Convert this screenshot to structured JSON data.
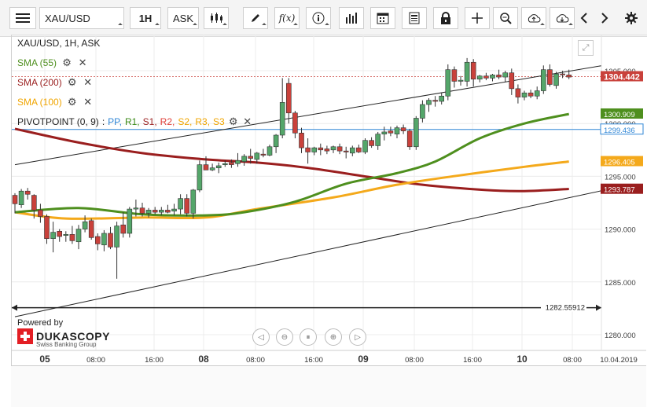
{
  "toolbar": {
    "instrument": "XAU/USD",
    "timeframe": "1H",
    "side": "ASK",
    "fx_label": "f(x)"
  },
  "legend": {
    "title": "XAU/USD, 1H, ASK",
    "sma55": "SMA (55)",
    "sma200": "SMA (200)",
    "sma100": "SMA (100)",
    "pivot_title": "PIVOTPOINT (0, 9)",
    "pivot_sep": ":",
    "pivot_items": [
      "PP,",
      "R1,",
      "S1,",
      "R2,",
      "S2,",
      "R3,",
      "S3"
    ]
  },
  "branding": {
    "powered": "Powered by",
    "name": "DUKASCOPY",
    "tagline": "Swiss Banking Group"
  },
  "colors": {
    "up": "#54a66a",
    "down": "#c9413b",
    "sma55": "#4e8f1e",
    "sma100": "#f4a91b",
    "sma200": "#9a1e1e",
    "pp": "#2f86d6",
    "r1": "#3a8a17",
    "s1": "#9a1e1e",
    "r2": "#e0403a",
    "s2": "#f0a500",
    "r3": "#f0a500",
    "s3": "#f0a500"
  },
  "chart_data": {
    "type": "candlestick",
    "instrument": "XAU/USD",
    "timeframe": "1H",
    "side": "ASK",
    "ylim": [
      1279,
      1307
    ],
    "y_ticks": [
      "1280.000",
      "1285.000",
      "1290.000",
      "1295.000",
      "1300.000",
      "1305.000"
    ],
    "x_ticks": [
      "05",
      "08:00",
      "16:00",
      "08",
      "08:00",
      "16:00",
      "09",
      "08:00",
      "16:00",
      "10",
      "08:00",
      "10.04.2019"
    ],
    "price_labels": [
      {
        "value": "1304.442",
        "color": "#c9413b"
      },
      {
        "value": "1300.909",
        "color": "#4e8f1e"
      },
      {
        "value": "1299.436",
        "color": "#2f86d6"
      },
      {
        "value": "1296.405",
        "color": "#f4a91b"
      },
      {
        "value": "1293.787",
        "color": "#9a1e1e"
      }
    ],
    "pivot_pp": 1299.436,
    "horizontal_line": {
      "value": 1282.55912,
      "label": "1282.55912"
    },
    "channel_upper": [
      [
        0,
        1296.1
      ],
      [
        115,
        1307.8
      ]
    ],
    "channel_lower": [
      [
        0,
        1281.7
      ],
      [
        115,
        1296.6
      ]
    ],
    "candles": [
      [
        1293.2,
        1293.4,
        1291.5,
        1292.4
      ],
      [
        1292.3,
        1293.8,
        1292.0,
        1293.6
      ],
      [
        1293.6,
        1293.9,
        1292.8,
        1293.3
      ],
      [
        1293.2,
        1293.3,
        1291.0,
        1291.8
      ],
      [
        1291.8,
        1292.4,
        1290.6,
        1291.2
      ],
      [
        1291.2,
        1291.4,
        1288.6,
        1289.1
      ],
      [
        1289.1,
        1290.7,
        1287.8,
        1289.7
      ],
      [
        1289.8,
        1290.0,
        1288.8,
        1289.3
      ],
      [
        1289.4,
        1289.8,
        1288.8,
        1289.5
      ],
      [
        1289.5,
        1290.3,
        1288.6,
        1288.9
      ],
      [
        1288.8,
        1290.4,
        1288.1,
        1290.0
      ],
      [
        1290.0,
        1291.3,
        1289.7,
        1290.7
      ],
      [
        1290.8,
        1291.0,
        1289.0,
        1289.2
      ],
      [
        1289.3,
        1289.6,
        1288.0,
        1288.6
      ],
      [
        1288.5,
        1289.9,
        1287.9,
        1289.6
      ],
      [
        1289.6,
        1290.2,
        1288.1,
        1288.3
      ],
      [
        1288.3,
        1290.7,
        1285.3,
        1290.3
      ],
      [
        1290.4,
        1291.6,
        1289.2,
        1289.6
      ],
      [
        1289.6,
        1292.1,
        1289.2,
        1291.9
      ],
      [
        1291.9,
        1292.8,
        1291.2,
        1292.0
      ],
      [
        1292.0,
        1292.5,
        1291.2,
        1291.5
      ],
      [
        1291.5,
        1292.0,
        1291.1,
        1291.8
      ],
      [
        1291.8,
        1292.1,
        1291.4,
        1291.6
      ],
      [
        1291.6,
        1292.1,
        1291.3,
        1291.8
      ],
      [
        1291.8,
        1292.3,
        1291.5,
        1291.6
      ],
      [
        1291.7,
        1292.4,
        1291.3,
        1291.9
      ],
      [
        1291.9,
        1293.3,
        1291.4,
        1292.9
      ],
      [
        1292.9,
        1293.3,
        1291.2,
        1291.5
      ],
      [
        1291.5,
        1293.8,
        1291.0,
        1293.7
      ],
      [
        1293.7,
        1296.5,
        1293.5,
        1296.1
      ],
      [
        1296.1,
        1296.9,
        1295.6,
        1295.6
      ],
      [
        1295.6,
        1296.2,
        1295.5,
        1295.8
      ],
      [
        1295.8,
        1296.3,
        1295.3,
        1296.0
      ],
      [
        1296.1,
        1296.5,
        1295.9,
        1296.2
      ],
      [
        1296.3,
        1296.6,
        1295.8,
        1296.1
      ],
      [
        1296.2,
        1297.2,
        1295.9,
        1296.5
      ],
      [
        1296.4,
        1297.1,
        1296.0,
        1296.9
      ],
      [
        1296.9,
        1297.6,
        1296.2,
        1296.7
      ],
      [
        1296.6,
        1297.3,
        1296.2,
        1297.2
      ],
      [
        1297.1,
        1297.6,
        1296.8,
        1297.0
      ],
      [
        1297.0,
        1298.0,
        1296.9,
        1297.8
      ],
      [
        1297.8,
        1299.0,
        1297.2,
        1298.9
      ],
      [
        1298.9,
        1304.3,
        1298.6,
        1302.0
      ],
      [
        1303.8,
        1304.3,
        1300.0,
        1301.0
      ],
      [
        1301.0,
        1301.2,
        1298.6,
        1299.1
      ],
      [
        1299.1,
        1299.6,
        1297.2,
        1297.7
      ],
      [
        1297.7,
        1298.6,
        1296.2,
        1297.3
      ],
      [
        1297.3,
        1297.8,
        1297.0,
        1297.7
      ],
      [
        1297.7,
        1298.1,
        1297.0,
        1297.5
      ],
      [
        1297.6,
        1297.9,
        1297.1,
        1297.4
      ],
      [
        1297.5,
        1297.9,
        1297.2,
        1297.8
      ],
      [
        1297.8,
        1298.1,
        1297.1,
        1297.4
      ],
      [
        1297.4,
        1297.8,
        1296.7,
        1297.3
      ],
      [
        1297.2,
        1297.9,
        1296.9,
        1297.7
      ],
      [
        1297.7,
        1298.0,
        1297.2,
        1297.3
      ],
      [
        1297.3,
        1298.6,
        1297.1,
        1298.4
      ],
      [
        1298.4,
        1298.7,
        1297.7,
        1297.9
      ],
      [
        1297.9,
        1299.2,
        1297.5,
        1299.0
      ],
      [
        1299.0,
        1299.7,
        1298.4,
        1299.2
      ],
      [
        1299.3,
        1299.7,
        1298.8,
        1299.1
      ],
      [
        1299.0,
        1299.8,
        1298.6,
        1299.6
      ],
      [
        1299.6,
        1299.9,
        1299.0,
        1299.3
      ],
      [
        1299.3,
        1299.5,
        1297.5,
        1297.8
      ],
      [
        1297.8,
        1300.7,
        1297.5,
        1300.5
      ],
      [
        1300.5,
        1302.2,
        1300.1,
        1301.8
      ],
      [
        1301.8,
        1302.4,
        1301.1,
        1302.2
      ],
      [
        1302.2,
        1302.6,
        1301.6,
        1302.1
      ],
      [
        1302.1,
        1302.9,
        1301.8,
        1302.6
      ],
      [
        1302.6,
        1305.6,
        1302.2,
        1305.1
      ],
      [
        1305.1,
        1305.4,
        1303.4,
        1304.0
      ],
      [
        1304.0,
        1304.5,
        1303.6,
        1304.1
      ],
      [
        1304.0,
        1306.2,
        1303.5,
        1305.8
      ],
      [
        1305.8,
        1306.1,
        1303.5,
        1304.2
      ],
      [
        1304.2,
        1304.6,
        1303.9,
        1304.5
      ],
      [
        1304.5,
        1304.8,
        1304.1,
        1304.3
      ],
      [
        1304.3,
        1304.7,
        1304.0,
        1304.6
      ],
      [
        1304.6,
        1305.1,
        1304.2,
        1304.4
      ],
      [
        1304.4,
        1305.0,
        1303.9,
        1304.8
      ],
      [
        1304.8,
        1305.2,
        1302.7,
        1303.3
      ],
      [
        1303.3,
        1303.7,
        1301.9,
        1302.5
      ],
      [
        1302.5,
        1303.1,
        1302.2,
        1302.9
      ],
      [
        1302.9,
        1303.2,
        1302.4,
        1302.6
      ],
      [
        1302.6,
        1303.5,
        1302.3,
        1303.1
      ],
      [
        1303.1,
        1305.5,
        1302.8,
        1305.1
      ],
      [
        1305.1,
        1305.6,
        1303.5,
        1303.7
      ],
      [
        1303.6,
        1304.9,
        1303.3,
        1304.7
      ],
      [
        1304.7,
        1305.0,
        1304.3,
        1304.6
      ],
      [
        1304.6,
        1305.1,
        1304.2,
        1304.4
      ]
    ],
    "sma55": [
      [
        0,
        1291.6
      ],
      [
        10,
        1292.0
      ],
      [
        20,
        1291.4
      ],
      [
        30,
        1291.3
      ],
      [
        36,
        1291.6
      ],
      [
        44,
        1292.6
      ],
      [
        52,
        1294.3
      ],
      [
        60,
        1295.3
      ],
      [
        66,
        1296.4
      ],
      [
        73,
        1298.6
      ],
      [
        80,
        1300.0
      ],
      [
        87,
        1300.9
      ]
    ],
    "sma100": [
      [
        0,
        1291.6
      ],
      [
        8,
        1291.0
      ],
      [
        20,
        1291.1
      ],
      [
        30,
        1291.1
      ],
      [
        38,
        1291.9
      ],
      [
        50,
        1293.0
      ],
      [
        60,
        1294.2
      ],
      [
        70,
        1295.1
      ],
      [
        80,
        1295.9
      ],
      [
        87,
        1296.4
      ]
    ],
    "sma200": [
      [
        0,
        1299.5
      ],
      [
        10,
        1298.2
      ],
      [
        20,
        1297.2
      ],
      [
        30,
        1296.6
      ],
      [
        38,
        1296.3
      ],
      [
        46,
        1295.8
      ],
      [
        56,
        1294.9
      ],
      [
        64,
        1294.2
      ],
      [
        74,
        1293.7
      ],
      [
        80,
        1293.6
      ],
      [
        87,
        1293.8
      ]
    ]
  }
}
